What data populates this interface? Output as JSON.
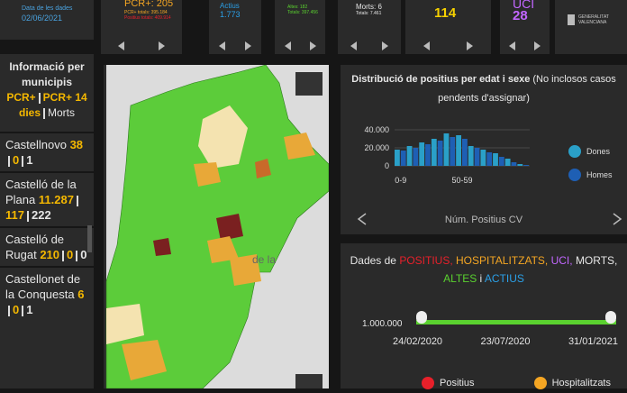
{
  "top_cards": {
    "date": {
      "label": "Data de les dades",
      "value": "02/06/2021"
    },
    "pcr": {
      "label": "PCR+: 205",
      "line1": "PCR+ totals: 395.184",
      "line2": "Positius totals: 409.914"
    },
    "actius": {
      "label": "Actius",
      "value": "1.773"
    },
    "altes": {
      "label": "Altes: 182",
      "line1": "Totals: 397.456"
    },
    "morts": {
      "label": "Morts: 6",
      "line1": "Totals: 7.461"
    },
    "hosp": {
      "value": "114"
    },
    "uci": {
      "label": "UCI",
      "value": "28"
    },
    "logo": "GENERALITAT VALENCIANA"
  },
  "municipis": {
    "title": "Informació per municipis",
    "legend": [
      {
        "text": "PCR+",
        "color": "#f5b800"
      },
      {
        "text": "PCR+ 14 dies",
        "color": "#f5b800"
      },
      {
        "text": "Morts",
        "color": "#e6e6e6"
      }
    ],
    "rows": [
      {
        "name": "Castellnovo",
        "values": [
          "38",
          "0",
          "1"
        ]
      },
      {
        "name": "Castelló de la Plana",
        "values": [
          "11.287",
          "117",
          "222"
        ]
      },
      {
        "name": "Castelló de Rugat",
        "values": [
          "210",
          "0",
          "0"
        ]
      },
      {
        "name": "Castellonet de la Conquesta",
        "values": [
          "6",
          "0",
          "1"
        ]
      }
    ]
  },
  "map": {
    "label": "de la"
  },
  "age_chart": {
    "type": "bar",
    "title": "Distribució de positius per edat i sexe",
    "subtitle": "(No inclosos casos pendents d'assignar)",
    "categories": [
      "0-9",
      null,
      null,
      null,
      null,
      "50-59",
      null,
      null,
      null,
      null,
      null
    ],
    "series": [
      {
        "name": "Dones",
        "color": "#2aa0c8",
        "values": [
          18000,
          22000,
          26000,
          30000,
          36000,
          34000,
          22000,
          18000,
          14000,
          8000,
          2000
        ]
      },
      {
        "name": "Homes",
        "color": "#1e5fb4",
        "values": [
          17000,
          20000,
          24000,
          28000,
          32000,
          30000,
          20000,
          15000,
          10000,
          4000,
          1000
        ]
      }
    ],
    "ylim": [
      0,
      44000
    ],
    "yticks": [
      0,
      {
        "value": 20000,
        "label": "20.000"
      },
      {
        "value": 40000,
        "label": "40.000"
      }
    ],
    "footer": "Núm. Positius CV"
  },
  "timeline": {
    "title": [
      {
        "text": "Dades de",
        "color": "#e6e6e6"
      },
      {
        "text": "POSITIUS,",
        "color": "#e8202a"
      },
      {
        "text": "HOSPITALITZATS,",
        "color": "#f5a623"
      },
      {
        "text": "UCI,",
        "color": "#c266ff"
      },
      {
        "text": "MORTS,",
        "color": "#e6e6e6"
      },
      {
        "text": "ALTES",
        "color": "#5ad12f"
      },
      {
        "text": "i",
        "color": "#e6e6e6"
      },
      {
        "text": "ACTIUS",
        "color": "#2aa0e8"
      }
    ],
    "scale_label": "1.000.000",
    "dates": [
      "24/02/2020",
      "23/07/2020",
      "31/01/2021"
    ],
    "legend": [
      {
        "text": "Positius",
        "color": "#e8202a"
      },
      {
        "text": "Hospitalitzats",
        "color": "#f5a623"
      }
    ]
  }
}
